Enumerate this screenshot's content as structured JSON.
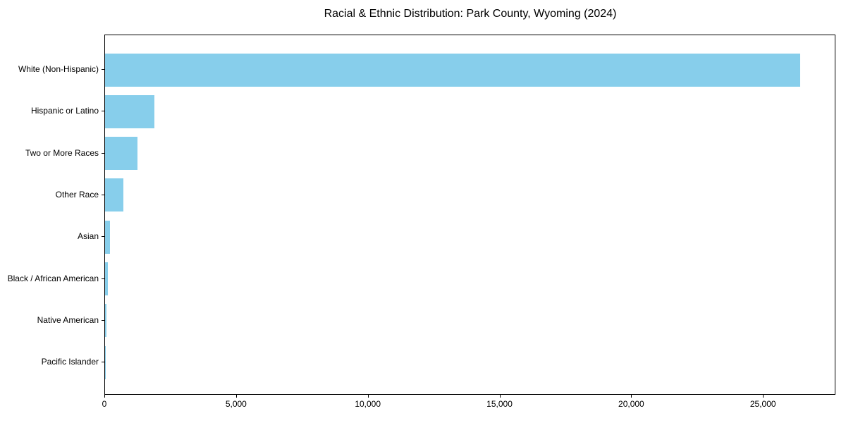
{
  "chart_data": {
    "type": "bar",
    "orientation": "horizontal",
    "title": "Racial & Ethnic Distribution: Park County, Wyoming (2024)",
    "categories": [
      "White (Non-Hispanic)",
      "Hispanic or Latino",
      "Two or More Races",
      "Other Race",
      "Asian",
      "Black / African American",
      "Native American",
      "Pacific Islander"
    ],
    "values": [
      26430,
      1870,
      1230,
      705,
      175,
      115,
      55,
      15
    ],
    "xlabel": "",
    "ylabel": "",
    "xlim": [
      0,
      27750
    ],
    "xticks": [
      0,
      5000,
      10000,
      15000,
      20000,
      25000
    ],
    "xtick_labels": [
      "0",
      "5,000",
      "10,000",
      "15,000",
      "20,000",
      "25,000"
    ],
    "bar_color": "#87CEEB",
    "text_color": "#000000",
    "grid": false,
    "legend": false
  }
}
